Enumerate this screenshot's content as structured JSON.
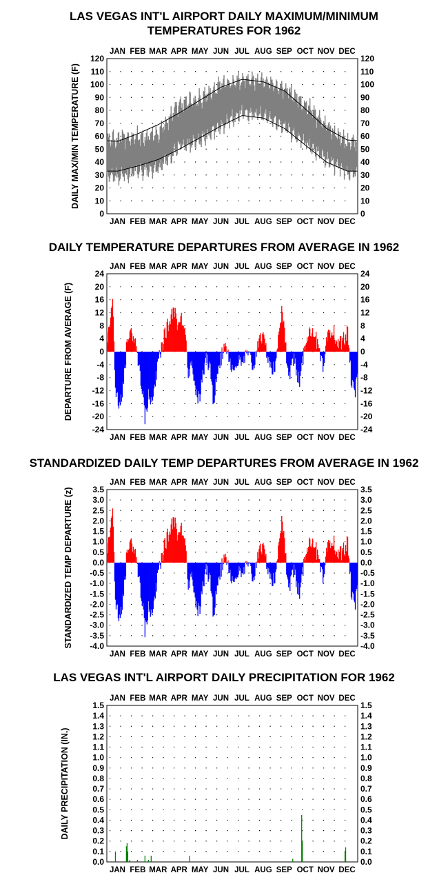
{
  "months": [
    "JAN",
    "FEB",
    "MAR",
    "APR",
    "MAY",
    "JUN",
    "JUL",
    "AUG",
    "SEP",
    "OCT",
    "NOV",
    "DEC"
  ],
  "chart_data": [
    {
      "id": "temp",
      "type": "line",
      "title": [
        "LAS VEGAS INT'L AIRPORT DAILY MAXIMUM/MINIMUM",
        "TEMPERATURES FOR 1962"
      ],
      "ylabel": "DAILY MAX/MIN TEMPERATURE (F)",
      "ylim": [
        0,
        120
      ],
      "yticks": [
        0,
        10,
        20,
        30,
        40,
        50,
        60,
        70,
        80,
        90,
        100,
        110,
        120
      ],
      "grid": true,
      "series": [
        {
          "role": "normal-max",
          "values_by_month_mid": [
            56,
            62,
            69,
            78,
            88,
            98,
            104,
            102,
            95,
            81,
            66,
            57
          ]
        },
        {
          "role": "normal-min",
          "values_by_month_mid": [
            33,
            37,
            42,
            50,
            59,
            68,
            76,
            74,
            66,
            53,
            40,
            33
          ]
        },
        {
          "role": "observed-max",
          "values_by_month_mid": [
            58,
            60,
            62,
            85,
            88,
            100,
            104,
            103,
            97,
            84,
            68,
            55
          ]
        },
        {
          "role": "observed-min",
          "values_by_month_mid": [
            28,
            33,
            35,
            52,
            56,
            68,
            78,
            76,
            67,
            55,
            42,
            32
          ]
        }
      ],
      "colors": {
        "range": "#808080",
        "normal": "#000000"
      }
    },
    {
      "id": "departure",
      "type": "bar",
      "title": [
        "DAILY TEMPERATURE DEPARTURES FROM AVERAGE IN 1962"
      ],
      "ylabel": "DEPARTURE FROM AVERAGE (F)",
      "ylim": [
        -24,
        24
      ],
      "yticks": [
        24,
        20,
        16,
        12,
        8,
        4,
        0,
        -4,
        -8,
        -12,
        -16,
        -20,
        -24
      ],
      "grid": true,
      "colors": {
        "positive": "#ff0000",
        "negative": "#0000ff"
      }
    },
    {
      "id": "standardized",
      "type": "bar",
      "title": [
        "STANDARDIZED DAILY TEMP DEPARTURES FROM AVERAGE IN 1962"
      ],
      "ylabel": "STANDARDIZED TEMP DEPARTURE (z)",
      "ylim": [
        -4.0,
        3.5
      ],
      "yticks": [
        "3.5",
        "3.0",
        "2.5",
        "2.0",
        "1.5",
        "1.0",
        "0.5",
        "0.0",
        "-0.5",
        "-1.0",
        "-1.5",
        "-2.0",
        "-2.5",
        "-3.0",
        "-3.5",
        "-4.0"
      ],
      "grid": true,
      "colors": {
        "positive": "#ff0000",
        "negative": "#0000ff"
      }
    },
    {
      "id": "precip",
      "type": "bar",
      "title": [
        "LAS VEGAS INT'L AIRPORT DAILY PRECIPITATION FOR 1962"
      ],
      "ylabel": "DAILY PRECIPITATION (IN.)",
      "ylim": [
        0,
        1.5
      ],
      "yticks": [
        "1.5",
        "1.4",
        "1.3",
        "1.2",
        "1.1",
        "1.0",
        "0.9",
        "0.8",
        "0.7",
        "0.6",
        "0.5",
        "0.4",
        "0.3",
        "0.2",
        "0.1",
        "0.0"
      ],
      "grid": true,
      "colors": {
        "bar": "#008000"
      },
      "days": [
        12,
        28,
        29,
        30,
        33,
        44,
        55,
        60,
        64,
        120,
        270,
        283,
        284,
        346,
        347
      ],
      "values": [
        0.1,
        0.15,
        0.18,
        0.1,
        0.02,
        0.02,
        0.06,
        0.02,
        0.06,
        0.06,
        0.03,
        0.45,
        0.2,
        0.1,
        0.14
      ]
    }
  ]
}
